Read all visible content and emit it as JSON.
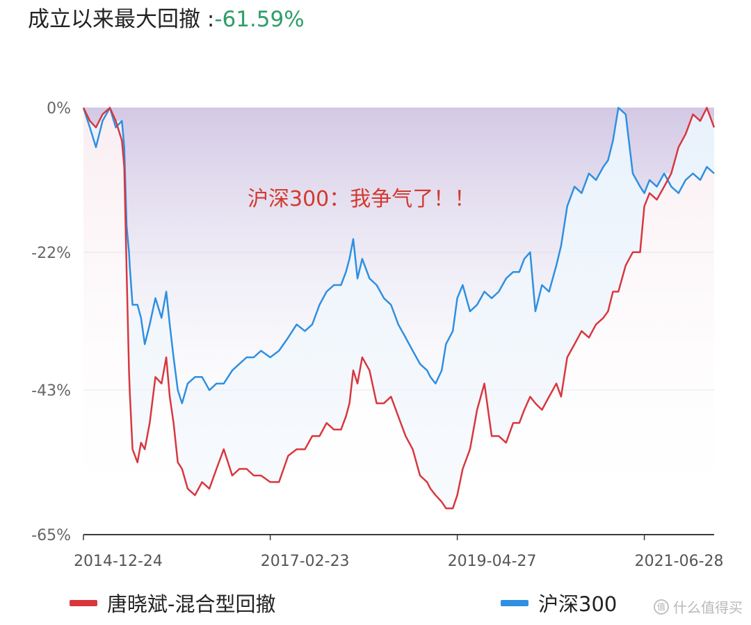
{
  "header": {
    "label": "成立以来最大回撤 :",
    "value": "-61.59%"
  },
  "chart_data": {
    "type": "line",
    "title": "成立以来最大回撤 :-61.59%",
    "xlabel": "",
    "ylabel": "",
    "y_ticks": [
      "0%",
      "-22%",
      "-43%",
      "-65%"
    ],
    "x_ticks": [
      "2014-12-24",
      "2017-02-23",
      "2019-04-27",
      "2021-06-28"
    ],
    "ylim": [
      -65,
      0
    ],
    "xlim": [
      "2014-12-24",
      "2022-04-20"
    ],
    "grid": true,
    "legend_position": "bottom",
    "annotation": "沪深300：我争气了！！",
    "series": [
      {
        "name": "唐晓斌-混合型回撤",
        "color": "#d9363e",
        "x": [
          "2014-12-24",
          "2015-01-20",
          "2015-02-15",
          "2015-03-15",
          "2015-04-15",
          "2015-05-10",
          "2015-06-05",
          "2015-06-15",
          "2015-06-25",
          "2015-07-05",
          "2015-07-08",
          "2015-07-20",
          "2015-08-10",
          "2015-08-25",
          "2015-09-10",
          "2015-10-01",
          "2015-10-25",
          "2015-11-20",
          "2015-12-10",
          "2015-12-25",
          "2016-01-10",
          "2016-01-28",
          "2016-02-15",
          "2016-03-10",
          "2016-04-10",
          "2016-05-10",
          "2016-06-10",
          "2016-07-10",
          "2016-08-10",
          "2016-09-15",
          "2016-10-15",
          "2016-11-15",
          "2016-12-15",
          "2017-01-15",
          "2017-02-23",
          "2017-04-01",
          "2017-05-10",
          "2017-06-15",
          "2017-07-20",
          "2017-08-20",
          "2017-09-20",
          "2017-10-20",
          "2017-11-20",
          "2017-12-20",
          "2018-01-10",
          "2018-01-25",
          "2018-02-10",
          "2018-02-28",
          "2018-03-20",
          "2018-04-20",
          "2018-05-20",
          "2018-06-20",
          "2018-07-20",
          "2018-08-20",
          "2018-09-20",
          "2018-10-20",
          "2018-11-20",
          "2018-12-20",
          "2019-01-03",
          "2019-01-25",
          "2019-02-20",
          "2019-03-10",
          "2019-04-08",
          "2019-04-27",
          "2019-05-20",
          "2019-06-20",
          "2019-07-20",
          "2019-08-20",
          "2019-09-20",
          "2019-10-20",
          "2019-11-20",
          "2019-12-20",
          "2020-01-15",
          "2020-02-05",
          "2020-03-01",
          "2020-03-23",
          "2020-04-20",
          "2020-05-20",
          "2020-06-20",
          "2020-07-10",
          "2020-08-05",
          "2020-09-05",
          "2020-10-05",
          "2020-11-05",
          "2020-12-05",
          "2021-01-05",
          "2021-01-25",
          "2021-02-15",
          "2021-03-10",
          "2021-04-10",
          "2021-05-10",
          "2021-06-10",
          "2021-06-28",
          "2021-07-20",
          "2021-08-20",
          "2021-09-20",
          "2021-10-20",
          "2021-11-20",
          "2021-12-20",
          "2022-01-20",
          "2022-02-20",
          "2022-03-20",
          "2022-04-20"
        ],
        "y": [
          0,
          -2,
          -3,
          -1,
          0,
          -2,
          -5,
          -9,
          -25,
          -40,
          -43,
          -52,
          -54,
          -51,
          -52,
          -48,
          -41,
          -42,
          -38,
          -44,
          -48,
          -54,
          -55,
          -58,
          -59,
          -57,
          -58,
          -55,
          -52,
          -56,
          -55,
          -55,
          -56,
          -56,
          -57,
          -57,
          -53,
          -52,
          -52,
          -50,
          -50,
          -48,
          -49,
          -49,
          -47,
          -45,
          -40,
          -42,
          -38,
          -40,
          -45,
          -45,
          -44,
          -47,
          -50,
          -52,
          -56,
          -57,
          -58,
          -59,
          -60,
          -61,
          -61,
          -59,
          -55,
          -52,
          -46,
          -42,
          -50,
          -50,
          -51,
          -48,
          -48,
          -46,
          -44,
          -45,
          -46,
          -44,
          -42,
          -44,
          -38,
          -36,
          -34,
          -35,
          -33,
          -32,
          -31,
          -28,
          -28,
          -24,
          -22,
          -22,
          -15,
          -13,
          -14,
          -12,
          -10,
          -6,
          -4,
          -1,
          -2,
          0,
          -3
        ]
      },
      {
        "name": "沪深300",
        "color": "#2f8fe0",
        "x": [
          "2014-12-24",
          "2015-01-20",
          "2015-02-15",
          "2015-03-15",
          "2015-04-15",
          "2015-05-10",
          "2015-06-05",
          "2015-06-15",
          "2015-06-25",
          "2015-07-05",
          "2015-07-08",
          "2015-07-20",
          "2015-08-10",
          "2015-08-25",
          "2015-09-10",
          "2015-10-01",
          "2015-10-25",
          "2015-11-20",
          "2015-12-10",
          "2015-12-25",
          "2016-01-10",
          "2016-01-28",
          "2016-02-15",
          "2016-03-10",
          "2016-04-10",
          "2016-05-10",
          "2016-06-10",
          "2016-07-10",
          "2016-08-10",
          "2016-09-15",
          "2016-10-15",
          "2016-11-15",
          "2016-12-15",
          "2017-01-15",
          "2017-02-23",
          "2017-04-01",
          "2017-05-10",
          "2017-06-15",
          "2017-07-20",
          "2017-08-20",
          "2017-09-20",
          "2017-10-20",
          "2017-11-20",
          "2017-12-20",
          "2018-01-10",
          "2018-01-25",
          "2018-02-10",
          "2018-02-28",
          "2018-03-20",
          "2018-04-20",
          "2018-05-20",
          "2018-06-20",
          "2018-07-20",
          "2018-08-20",
          "2018-09-20",
          "2018-10-20",
          "2018-11-20",
          "2018-12-20",
          "2019-01-03",
          "2019-01-25",
          "2019-02-20",
          "2019-03-10",
          "2019-04-08",
          "2019-04-27",
          "2019-05-20",
          "2019-06-20",
          "2019-07-20",
          "2019-08-20",
          "2019-09-20",
          "2019-10-20",
          "2019-11-20",
          "2019-12-20",
          "2020-01-15",
          "2020-02-05",
          "2020-03-01",
          "2020-03-23",
          "2020-04-20",
          "2020-05-20",
          "2020-06-20",
          "2020-07-10",
          "2020-08-05",
          "2020-09-05",
          "2020-10-05",
          "2020-11-05",
          "2020-12-05",
          "2021-01-05",
          "2021-01-25",
          "2021-02-15",
          "2021-03-10",
          "2021-04-10",
          "2021-05-10",
          "2021-06-10",
          "2021-06-28",
          "2021-07-20",
          "2021-08-20",
          "2021-09-20",
          "2021-10-20",
          "2021-11-20",
          "2021-12-20",
          "2022-01-20",
          "2022-02-20",
          "2022-03-20",
          "2022-04-20"
        ],
        "y": [
          0,
          -3,
          -6,
          -2,
          0,
          -3,
          -2,
          -6,
          -18,
          -22,
          -24,
          -30,
          -30,
          -32,
          -36,
          -33,
          -29,
          -32,
          -28,
          -33,
          -38,
          -43,
          -45,
          -42,
          -41,
          -41,
          -43,
          -42,
          -42,
          -40,
          -39,
          -38,
          -38,
          -37,
          -38,
          -37,
          -35,
          -33,
          -34,
          -33,
          -30,
          -28,
          -27,
          -27,
          -25,
          -23,
          -20,
          -26,
          -23,
          -26,
          -27,
          -29,
          -30,
          -33,
          -35,
          -37,
          -39,
          -40,
          -41,
          -42,
          -40,
          -36,
          -34,
          -29,
          -27,
          -31,
          -30,
          -28,
          -29,
          -28,
          -26,
          -25,
          -25,
          -23,
          -22,
          -31,
          -27,
          -28,
          -24,
          -21,
          -15,
          -12,
          -13,
          -10,
          -11,
          -9,
          -8,
          -5,
          0,
          -1,
          -10,
          -12,
          -13,
          -11,
          -12,
          -10,
          -12,
          -13,
          -11,
          -10,
          -11,
          -9,
          -10
        ]
      }
    ]
  },
  "legend": {
    "item1": "唐晓斌-混合型回撤",
    "item2": "沪深300"
  },
  "watermark": "什么值得买"
}
